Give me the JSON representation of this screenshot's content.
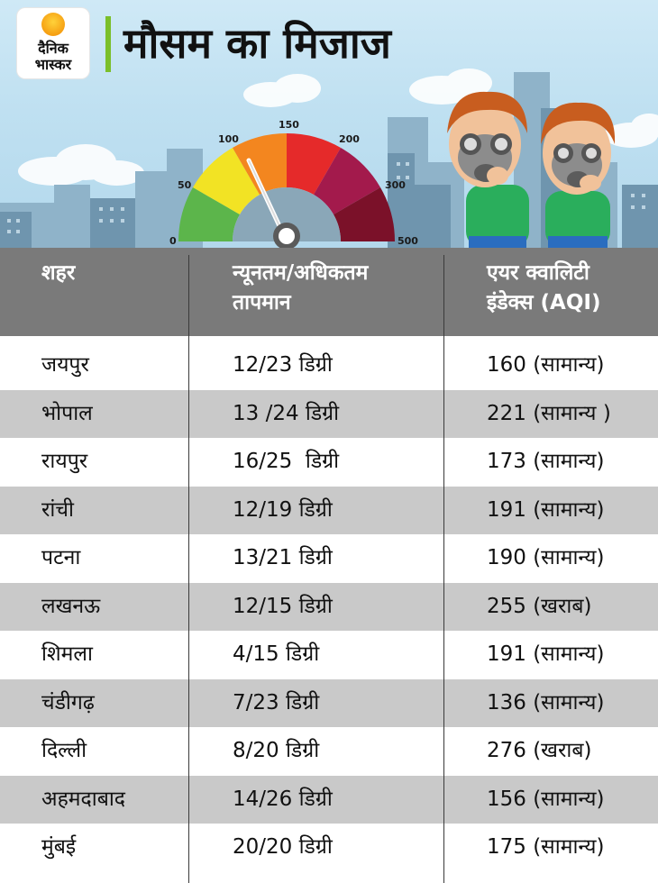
{
  "brand": {
    "line1": "दैनिक",
    "line2": "भास्कर"
  },
  "title": "मौसम का मिजाज",
  "gauge": {
    "labels": [
      "0",
      "50",
      "100",
      "150",
      "200",
      "300",
      "500"
    ]
  },
  "colors": {
    "title_bar": "#7bbf2a",
    "header_bg": "#7a7a7a",
    "row_alt": "#c9c9c9",
    "gauge_segments": [
      "#5cb54b",
      "#f2e324",
      "#f3861f",
      "#e52a2a",
      "#a31a4c",
      "#7b1129"
    ]
  },
  "table": {
    "headers": {
      "city": "शहर",
      "temp_line1": "न्यूनतम/अधिकतम",
      "temp_line2": "तापमान",
      "aqi_line1": "एयर क्वालिटी",
      "aqi_line2": "इंडेक्स (AQI)"
    },
    "rows": [
      {
        "city": "जयपुर",
        "temp": "12/23 डिग्री",
        "aqi": "160 (सामान्य)"
      },
      {
        "city": "भोपाल",
        "temp": "13 /24 डिग्री",
        "aqi": "221 (सामान्य )"
      },
      {
        "city": "रायपुर",
        "temp": "16/25  डिग्री",
        "aqi": "173 (सामान्य)"
      },
      {
        "city": "रांची",
        "temp": "12/19 डिग्री",
        "aqi": "191 (सामान्य)"
      },
      {
        "city": "पटना",
        "temp": "13/21 डिग्री",
        "aqi": "190 (सामान्य)"
      },
      {
        "city": "लखनऊ",
        "temp": "12/15 डिग्री",
        "aqi": "255 (खराब)"
      },
      {
        "city": "शिमला",
        "temp": "4/15 डिग्री",
        "aqi": "191 (सामान्य)"
      },
      {
        "city": "चंडीगढ़",
        "temp": "7/23 डिग्री",
        "aqi": "136 (सामान्य)"
      },
      {
        "city": "दिल्ली",
        "temp": "8/20 डिग्री",
        "aqi": "276 (खराब)"
      },
      {
        "city": "अहमदाबाद",
        "temp": "14/26 डिग्री",
        "aqi": "156 (सामान्य)"
      },
      {
        "city": "मुंबई",
        "temp": "20/20 डिग्री",
        "aqi": "175 (सामान्य)"
      }
    ]
  }
}
